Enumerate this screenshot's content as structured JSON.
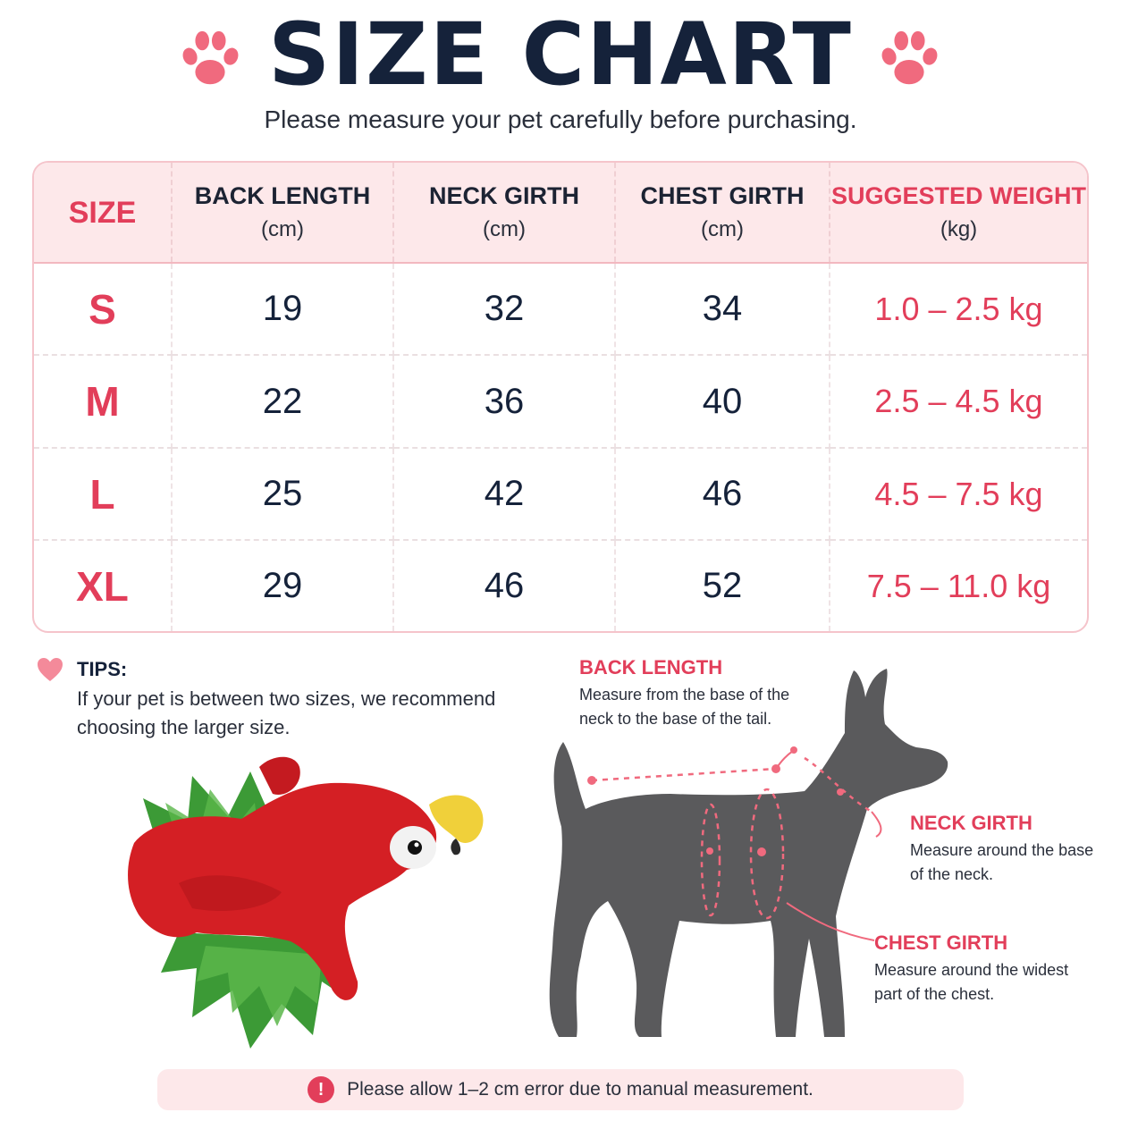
{
  "header": {
    "title": "SIZE CHART",
    "subtitle": "Please measure your pet carefully before purchasing."
  },
  "table": {
    "headers": [
      {
        "label": "SIZE",
        "unit": ""
      },
      {
        "label": "BACK LENGTH",
        "unit": "(cm)"
      },
      {
        "label": "NECK GIRTH",
        "unit": "(cm)"
      },
      {
        "label": "CHEST GIRTH",
        "unit": "(cm)"
      },
      {
        "label": "SUGGESTED WEIGHT",
        "unit": "(kg)"
      }
    ],
    "rows": [
      {
        "size": "S",
        "back": "19",
        "neck": "32",
        "chest": "34",
        "weight": "1.0 – 2.5 kg"
      },
      {
        "size": "M",
        "back": "22",
        "neck": "36",
        "chest": "40",
        "weight": "2.5 – 4.5 kg"
      },
      {
        "size": "L",
        "back": "25",
        "neck": "42",
        "chest": "46",
        "weight": "4.5 – 7.5 kg"
      },
      {
        "size": "XL",
        "back": "29",
        "neck": "46",
        "chest": "52",
        "weight": "7.5 – 11.0 kg"
      }
    ]
  },
  "tips": {
    "title": "TIPS:",
    "text": "If your pet is between two sizes, we recommend choosing the larger size."
  },
  "callouts": {
    "back": {
      "title": "BACK LENGTH",
      "text": "Measure from the base of the neck to the base of the tail."
    },
    "neck": {
      "title": "NECK GIRTH",
      "text": "Measure around the base of the neck."
    },
    "chest": {
      "title": "CHEST GIRTH",
      "text": "Measure around the widest part of the chest."
    }
  },
  "notice": {
    "icon": "!",
    "text": "Please allow 1–2 cm error due to manual measurement."
  },
  "colors": {
    "accent": "#e23e5a",
    "header_bg": "#fde8ea",
    "title": "#15223a",
    "dog": "#5a5a5c"
  },
  "icons": [
    "paw-icon",
    "heart-icon",
    "alert-icon"
  ]
}
